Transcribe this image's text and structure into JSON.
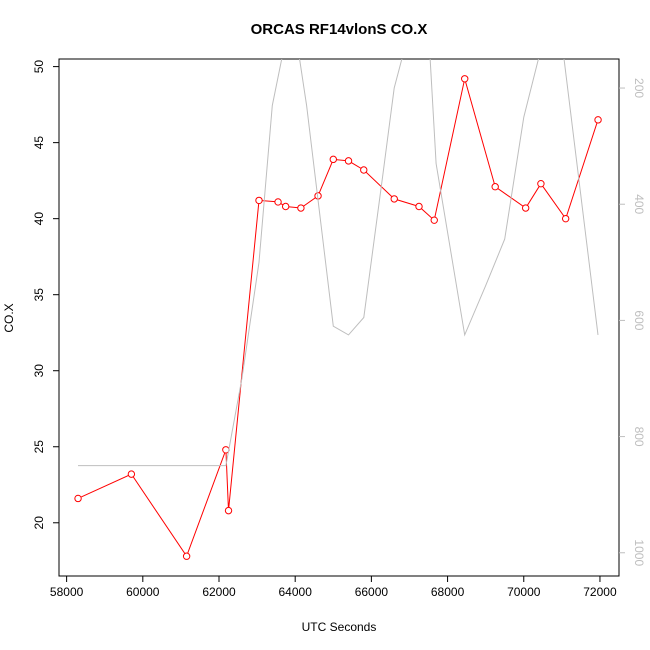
{
  "chart_data": {
    "type": "line",
    "title": "ORCAS RF14vlonS CO.X",
    "xlabel": "UTC Seconds",
    "ylabel": "CO.X",
    "xlim": [
      57800,
      72500
    ],
    "ylim": [
      16.5,
      50.5
    ],
    "x_ticks": [
      58000,
      60000,
      62000,
      64000,
      66000,
      68000,
      70000,
      72000
    ],
    "y_ticks": [
      20,
      25,
      30,
      35,
      40,
      45,
      50
    ],
    "right_axis": {
      "reversed": true,
      "ticks": [
        200,
        400,
        600,
        800,
        1000
      ],
      "ylim": [
        150,
        1040
      ],
      "color": "#bebebe"
    },
    "series": [
      {
        "axis": "left",
        "color": "#ff0000",
        "marker": "open-circle",
        "x": [
          58300,
          59700,
          61150,
          62180,
          62250,
          63050,
          63550,
          63750,
          64150,
          64600,
          65000,
          65400,
          65800,
          66600,
          67250,
          67650,
          68450,
          69250,
          70050,
          70450,
          71100,
          71950
        ],
        "y": [
          21.6,
          23.2,
          17.8,
          24.8,
          20.8,
          41.2,
          41.1,
          40.8,
          40.7,
          41.5,
          43.9,
          43.8,
          43.2,
          41.3,
          40.8,
          39.9,
          49.2,
          42.1,
          40.7,
          42.3,
          40.0,
          46.5
        ]
      },
      {
        "axis": "right",
        "color": "#bebebe",
        "marker": "none",
        "x": [
          58300,
          62180,
          62600,
          63050,
          63400,
          63800,
          64000,
          64300,
          65000,
          65400,
          65800,
          66300,
          66600,
          67000,
          67500,
          67700,
          68450,
          69000,
          69500,
          70000,
          70500,
          71000,
          71950
        ],
        "y": [
          850,
          850,
          700,
          500,
          230,
          100,
          100,
          230,
          610,
          625,
          595,
          350,
          200,
          100,
          100,
          330,
          625,
          540,
          460,
          250,
          120,
          120,
          625
        ]
      }
    ]
  }
}
